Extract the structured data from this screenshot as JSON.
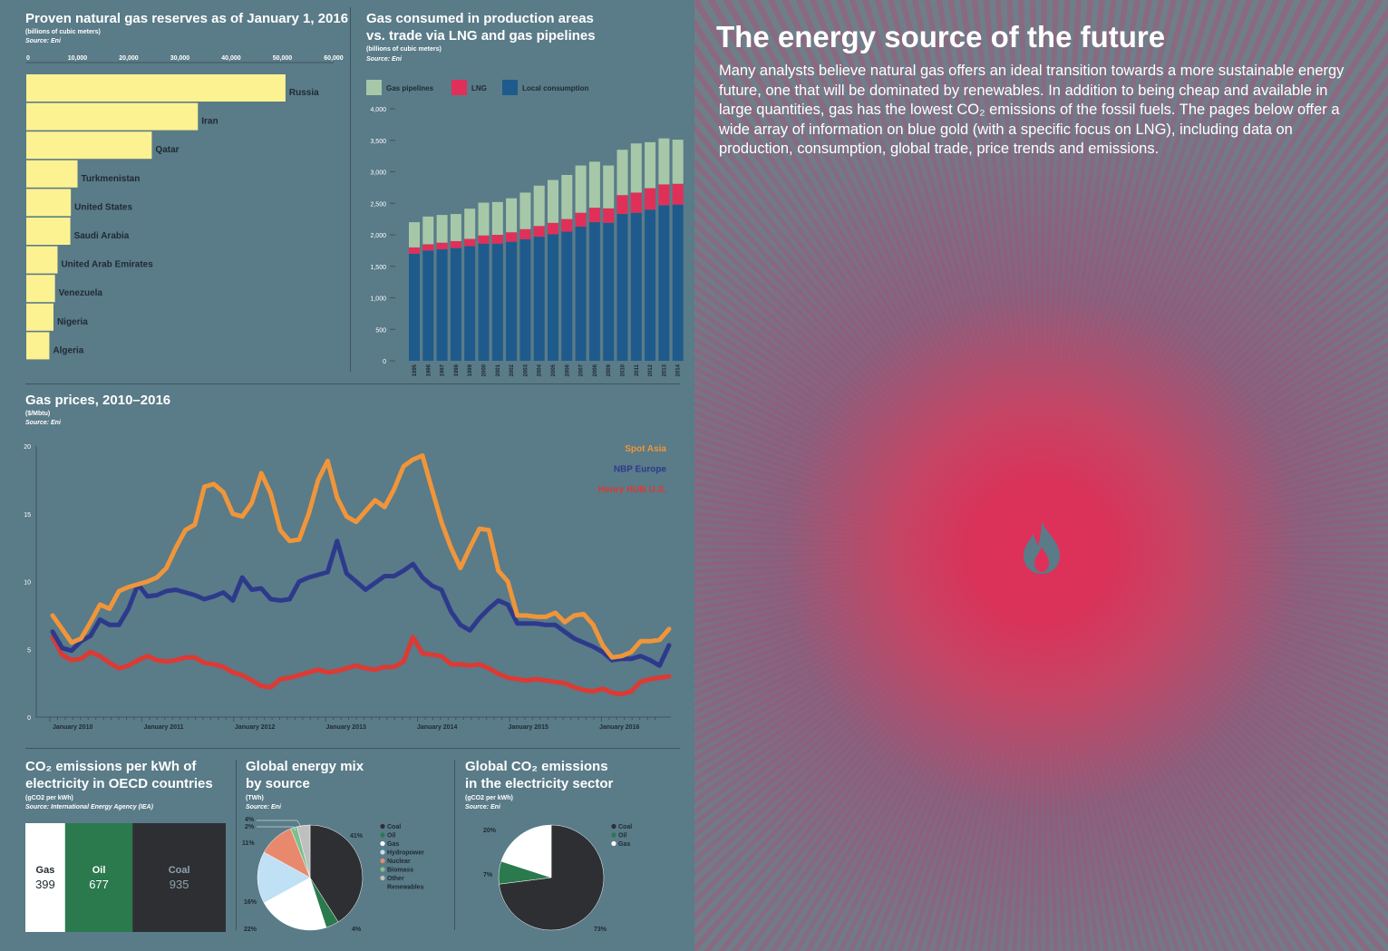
{
  "chart_data": [
    {
      "type": "bar",
      "orientation": "horizontal",
      "title": "Proven natural gas reserves as of January 1, 2016",
      "subtitle": "(billions of cubic meters)",
      "source": "Source: Eni",
      "categories": [
        "Russia",
        "Iran",
        "Qatar",
        "Turkmenistan",
        "United States",
        "Saudi Arabia",
        "United Arab Emirates",
        "Venezuela",
        "Nigeria",
        "Algeria"
      ],
      "values": [
        50600,
        33500,
        24500,
        10000,
        8700,
        8600,
        6100,
        5600,
        5300,
        4500
      ],
      "xlim": [
        0,
        60000
      ],
      "xticks": [
        "0",
        "10,000",
        "20,000",
        "30,000",
        "40,000",
        "50,000",
        "60,000"
      ],
      "bar_color": "#fdf291"
    },
    {
      "type": "bar",
      "stacked": true,
      "title": "Gas consumed in production areas vs. trade via LNG and gas pipelines",
      "title_lines": [
        "Gas consumed in production areas",
        "vs. trade via LNG and gas pipelines"
      ],
      "subtitle": "(billions of cubic meters)",
      "source": "Source: Eni",
      "categories": [
        "1995",
        "1996",
        "1997",
        "1998",
        "1999",
        "2000",
        "2001",
        "2002",
        "2003",
        "2004",
        "2005",
        "2006",
        "2007",
        "2008",
        "2009",
        "2010",
        "2011",
        "2012",
        "2013",
        "2014"
      ],
      "ylim": [
        0,
        4000
      ],
      "yticks": [
        "0",
        "500",
        "1,000",
        "1,500",
        "2,000",
        "2,500",
        "3,000",
        "3,500",
        "4,000"
      ],
      "series": [
        {
          "name": "Local consumption",
          "color": "#1e5b8c",
          "values": [
            1700,
            1750,
            1770,
            1790,
            1820,
            1860,
            1860,
            1890,
            1930,
            1970,
            2010,
            2050,
            2130,
            2200,
            2190,
            2330,
            2350,
            2400,
            2470,
            2480
          ]
        },
        {
          "name": "LNG",
          "color": "#e0305a",
          "values": [
            100,
            100,
            105,
            110,
            115,
            130,
            140,
            150,
            160,
            170,
            180,
            200,
            220,
            230,
            230,
            300,
            320,
            340,
            330,
            330
          ]
        },
        {
          "name": "Gas pipelines",
          "color": "#a6c8a8",
          "values": [
            400,
            440,
            440,
            430,
            480,
            520,
            520,
            540,
            580,
            640,
            680,
            700,
            750,
            730,
            680,
            720,
            780,
            730,
            730,
            700
          ]
        }
      ],
      "legend": [
        "Gas pipelines",
        "LNG",
        "Local consumption"
      ]
    },
    {
      "type": "line",
      "title": "Gas prices, 2010–2016",
      "subtitle": "($/Mbtu)",
      "source": "Source: Eni",
      "ylim": [
        0,
        20
      ],
      "yticks": [
        "0",
        "5",
        "10",
        "15",
        "20"
      ],
      "xlabels": [
        "January 2010",
        "January 2011",
        "January 2012",
        "January 2013",
        "January 2014",
        "January 2015",
        "January 2016"
      ],
      "series": [
        {
          "name": "Spot Asia",
          "color": "#f0953a",
          "values": [
            7.5,
            6.5,
            5.5,
            5.8,
            7,
            8.3,
            8,
            9.3,
            9.6,
            9.8,
            10,
            10.3,
            11,
            12.5,
            13.8,
            14.2,
            17,
            17.2,
            16.6,
            15,
            14.8,
            15.8,
            18,
            16.5,
            13.8,
            13,
            13.1,
            15,
            17.5,
            18.9,
            16.2,
            14.8,
            14.4,
            15.2,
            16,
            15.5,
            16.8,
            18.5,
            19,
            19.3,
            16.8,
            14.4,
            12.5,
            11,
            12.5,
            13.9,
            13.8,
            10.8,
            10,
            7.5,
            7.5,
            7.4,
            7.4,
            7.7,
            7,
            7.5,
            7.6,
            6.8,
            5.3,
            4.4,
            4.5,
            4.8,
            5.6,
            5.6,
            5.7,
            6.5
          ]
        },
        {
          "name": "NBP Europe",
          "color": "#2d3a8c",
          "values": [
            6.3,
            5.1,
            4.9,
            5.6,
            6,
            7.2,
            6.8,
            6.8,
            8,
            9.8,
            8.9,
            9,
            9.3,
            9.4,
            9.2,
            9,
            8.7,
            8.9,
            9.2,
            8.6,
            10.3,
            9.4,
            9.5,
            8.7,
            8.6,
            8.7,
            10,
            10.3,
            10.5,
            10.7,
            13,
            10.6,
            10,
            9.4,
            9.9,
            10.4,
            10.4,
            10.8,
            11.3,
            10.3,
            9.7,
            9.4,
            7.8,
            6.8,
            6.4,
            7.3,
            8,
            8.6,
            8.3,
            6.9,
            6.9,
            6.9,
            6.8,
            6.8,
            6.3,
            5.8,
            5.5,
            5.2,
            4.8,
            4.2,
            4.3,
            4.3,
            4.5,
            4.2,
            3.8,
            5.3
          ]
        },
        {
          "name": "Henry HUB U.S.",
          "color": "#dc3a34",
          "values": [
            5.9,
            4.6,
            4.2,
            4.3,
            4.8,
            4.5,
            4,
            3.6,
            3.8,
            4.2,
            4.5,
            4.2,
            4.1,
            4.2,
            4.4,
            4.4,
            4,
            3.9,
            3.7,
            3.3,
            3.1,
            2.7,
            2.3,
            2.2,
            2.8,
            2.9,
            3.1,
            3.3,
            3.5,
            3.3,
            3.4,
            3.6,
            3.8,
            3.6,
            3.5,
            3.7,
            3.7,
            4.1,
            5.9,
            4.7,
            4.6,
            4.5,
            3.9,
            3.9,
            3.8,
            3.9,
            3.6,
            3.2,
            2.9,
            2.8,
            2.7,
            2.8,
            2.7,
            2.6,
            2.5,
            2.2,
            2.0,
            1.9,
            2.1,
            1.8,
            1.7,
            1.9,
            2.6,
            2.8,
            2.9,
            3.0
          ]
        }
      ]
    },
    {
      "type": "bar",
      "stacked": true,
      "title": "CO2 emissions per kWh of electricity in OECD countries",
      "title_lines": [
        "CO₂ emissions per kWh of",
        "electricity in OECD countries"
      ],
      "subtitle": "(gCO2 per kWh)",
      "source": "Source: International Energy Agency (IEA)",
      "categories": [
        "Gas",
        "Oil",
        "Coal"
      ],
      "values": [
        399,
        677,
        935
      ],
      "colors": [
        "#ffffff",
        "#2a7a4e",
        "#2e2f33"
      ]
    },
    {
      "type": "pie",
      "title": "Global energy mix by source",
      "title_lines": [
        "Global energy mix",
        "by source"
      ],
      "subtitle": "(TWh)",
      "source": "Source: Eni",
      "categories": [
        "Coal",
        "Oil",
        "Gas",
        "Hydropower",
        "Nuclear",
        "Biomass",
        "Other Renewables"
      ],
      "legend_lines": [
        [
          "Coal"
        ],
        [
          "Oil"
        ],
        [
          "Gas"
        ],
        [
          "Hydropower"
        ],
        [
          "Nuclear"
        ],
        [
          "Biomass"
        ],
        [
          "Other",
          "Renewables"
        ]
      ],
      "values": [
        41,
        4,
        22,
        16,
        11,
        2,
        4
      ],
      "labels": [
        "41%",
        "4%",
        "22%",
        "16%",
        "11%",
        "2%",
        "4%"
      ],
      "colors": [
        "#2e2f33",
        "#2a7a4e",
        "#ffffff",
        "#bfe0f5",
        "#e8896e",
        "#7dbf8e",
        "#bfbfbf"
      ]
    },
    {
      "type": "pie",
      "title": "Global CO2 emissions in the electricity sector",
      "title_lines": [
        "Global CO₂ emissions",
        "in the electricity sector"
      ],
      "subtitle": "(gCO2 per kWh)",
      "source": "Source: Eni",
      "categories": [
        "Coal",
        "Oil",
        "Gas"
      ],
      "values": [
        73,
        7,
        20
      ],
      "labels": [
        "73%",
        "7%",
        "20%"
      ],
      "colors": [
        "#2e2f33",
        "#2a7a4e",
        "#ffffff"
      ]
    }
  ],
  "right": {
    "title": "The energy source of the future",
    "intro": "Many analysts believe natural gas offers an ideal transition towards a more sustainable energy future, one that will be dominated by renewables. In addition to being cheap and available in large quantities, gas has the lowest CO₂ emissions of the fossil fuels. The pages below offer a wide array of information on blue gold (with a specific focus on LNG), including data on production, consumption, global trade, price trends and emissions.",
    "icon": "flame-icon",
    "accent": "#e0305a"
  }
}
